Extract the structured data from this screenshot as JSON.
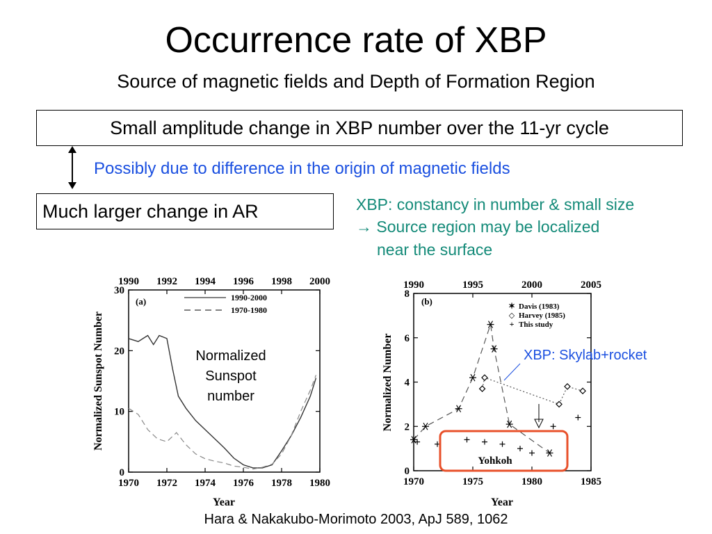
{
  "header": {
    "title": "Occurrence rate of XBP",
    "subtitle": "Source of magnetic fields and Depth of Formation Region"
  },
  "notes": {
    "box_top": "Small amplitude change in XBP number over the 11-yr cycle",
    "box_bottom": "Much larger change in AR",
    "link_text": "Possibly due to difference in the origin of magnetic fields",
    "xbp_line1": "XBP: constancy in number & small size",
    "xbp_line2": "→ Source region may be localized",
    "xbp_line3": "near the surface",
    "chart_a_annotation": "Normalized Sunspot number",
    "chart_b_annotation": "XBP: Skylab+rocket",
    "citation": "Hara & Nakakubo-Morimoto 2003,  ApJ 589, 1062"
  },
  "colors": {
    "blue_text": "#1a4fe0",
    "teal_text": "#138a78",
    "highlight_box": "#e8502a"
  },
  "chart_data": [
    {
      "type": "line",
      "panel_label": "(a)",
      "xlabel": "Year",
      "ylabel": "Normalized Sunspot Number",
      "xlim": [
        1970,
        1980
      ],
      "ylim": [
        0,
        30
      ],
      "x_ticks": [
        "1970",
        "1972",
        "1974",
        "1976",
        "1978",
        "1980"
      ],
      "top_ticks": [
        "1990",
        "1992",
        "1994",
        "1996",
        "1998",
        "2000"
      ],
      "y_ticks": [
        "0",
        "10",
        "20",
        "30"
      ],
      "grid": false,
      "legend_position": "top-right",
      "series": [
        {
          "name": "1990-2000",
          "style": "solid",
          "x": [
            1970,
            1970.5,
            1971,
            1971.3,
            1971.6,
            1972,
            1972.3,
            1972.6,
            1973,
            1973.5,
            1974,
            1974.5,
            1975,
            1975.5,
            1976,
            1976.5,
            1977,
            1977.5,
            1978,
            1978.5,
            1979,
            1979.5,
            1979.8
          ],
          "y": [
            22,
            21.5,
            22.5,
            21,
            22.5,
            22,
            17,
            12.5,
            10.5,
            8.5,
            7,
            5.5,
            4,
            2.3,
            1.2,
            0.7,
            0.7,
            1.2,
            3.5,
            6,
            9,
            12.5,
            15.5
          ]
        },
        {
          "name": "1970-1980",
          "style": "dashed",
          "x": [
            1970,
            1970.5,
            1971,
            1971.5,
            1972,
            1972.5,
            1973,
            1973.5,
            1974,
            1974.5,
            1975,
            1975.5,
            1976,
            1976.5,
            1977,
            1977.5,
            1978,
            1978.5,
            1979,
            1979.5,
            1979.8
          ],
          "y": [
            10.5,
            9.5,
            7,
            5.5,
            5,
            6.5,
            4.5,
            3,
            2.2,
            1.8,
            1.5,
            1,
            0.8,
            0.5,
            0.8,
            1.3,
            3,
            6,
            10,
            13.5,
            16
          ]
        }
      ]
    },
    {
      "type": "scatter",
      "panel_label": "(b)",
      "xlabel": "Year",
      "ylabel": "Normalized Number",
      "xlim": [
        1970,
        1985
      ],
      "ylim": [
        0,
        8
      ],
      "x_ticks": [
        "1970",
        "1975",
        "1980",
        "1985"
      ],
      "top_ticks": [
        "1990",
        "1995",
        "2000",
        "2005"
      ],
      "y_ticks": [
        "0",
        "2",
        "4",
        "6",
        "8"
      ],
      "grid": false,
      "legend_position": "top-left",
      "highlight_label": "Yohkoh",
      "series": [
        {
          "name": "Davis (1983)",
          "marker": "asterisk",
          "x": [
            1970,
            1971,
            1973.8,
            1975,
            1976.5,
            1976.8,
            1978.1,
            1981.5
          ],
          "y": [
            1.4,
            2.0,
            2.8,
            4.2,
            6.6,
            5.5,
            2.1,
            0.8
          ]
        },
        {
          "name": "Harvey (1985)",
          "marker": "diamond",
          "x": [
            1975.8,
            1976,
            1982.3,
            1983,
            1984.3
          ],
          "y": [
            3.7,
            4.2,
            3.0,
            3.8,
            3.6
          ]
        },
        {
          "name": "This study",
          "marker": "plus",
          "x": [
            1970.3,
            1972,
            1974.5,
            1976,
            1977.5,
            1979,
            1980,
            1981.8,
            1983.9
          ],
          "y": [
            1.3,
            1.2,
            1.4,
            1.3,
            1.2,
            1.0,
            0.8,
            2.0,
            2.4
          ]
        }
      ]
    }
  ]
}
